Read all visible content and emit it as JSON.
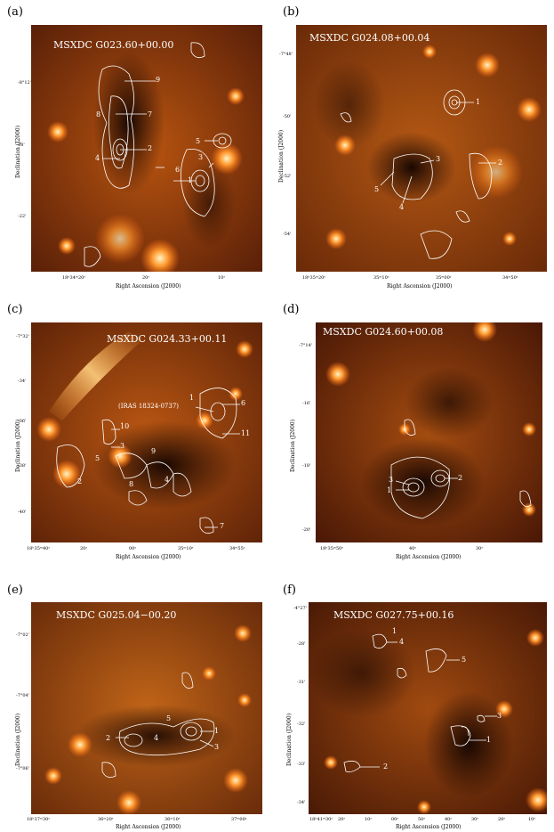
{
  "panels": [
    {
      "id": "a",
      "label": "(a)",
      "title": "MSXDC  G023.60+00.00",
      "ylabel": "Declination (J2000)",
      "xlabel": "Right Ascension (J2000)",
      "xticks": [
        "18ʰ34ᵐ20ˢ",
        "20ˢ",
        "10ˢ"
      ],
      "yticks": [
        "-8°12'",
        "18'",
        "-22'"
      ],
      "cores": [
        "1",
        "2",
        "3",
        "4",
        "5",
        "6",
        "7",
        "8",
        "9"
      ]
    },
    {
      "id": "b",
      "label": "(b)",
      "title": "MSXDC  G024.08+00.04",
      "ylabel": "Declination (J2000)",
      "xlabel": "Right Ascension (J2000)",
      "xticks": [
        "18ʰ35ᵐ20ˢ",
        "35ᵐ10ˢ",
        "35ᵐ00ˢ",
        "34ᵐ50ˢ"
      ],
      "yticks": [
        "-7°48'",
        "-50'",
        "-52'",
        "-54'"
      ],
      "cores": [
        "1",
        "2",
        "3",
        "4",
        "5"
      ]
    },
    {
      "id": "c",
      "label": "(c)",
      "title": "MSXDC  G024.33+00.11",
      "note": "(IRAS 18324-0737)",
      "ylabel": "Declination (J2000)",
      "xlabel": "Right Ascension (J2000)",
      "xticks": [
        "18ʰ35ᵐ40ˢ",
        "20ˢ",
        "00ˢ",
        "35ᵐ10ˢ",
        "34ᵐ55ˢ"
      ],
      "yticks": [
        "-7°32'",
        "-34'",
        "-36'",
        "-38'",
        "-40'"
      ],
      "cores": [
        "1",
        "2",
        "3",
        "4",
        "5",
        "6",
        "7",
        "8",
        "9",
        "10",
        "11"
      ]
    },
    {
      "id": "d",
      "label": "(d)",
      "title": "MSXDC  G024.60+00.08",
      "ylabel": "Declination (J2000)",
      "xlabel": "Right Ascension (J2000)",
      "xticks": [
        "18ʰ35ᵐ50ˢ",
        "40ˢ",
        "30ˢ"
      ],
      "yticks": [
        "-7°14'",
        "-16'",
        "-18'",
        "-20'"
      ],
      "cores": [
        "1",
        "2",
        "3"
      ]
    },
    {
      "id": "e",
      "label": "(e)",
      "title": "MSXDC  G025.04−00.20",
      "ylabel": "Declination (J2000)",
      "xlabel": "Right Ascension (J2000)",
      "xticks": [
        "18ʰ37ᵐ30ˢ",
        "36ᵐ20ˢ",
        "36ᵐ10ˢ",
        "37ᵐ00ˢ"
      ],
      "yticks": [
        "-7°02'",
        "-7°04'",
        "-7°06'"
      ],
      "cores": [
        "1",
        "2",
        "3",
        "4",
        "5"
      ]
    },
    {
      "id": "f",
      "label": "(f)",
      "title": "MSXDC  G027.75+00.16",
      "ylabel": "Declination (J2000)",
      "xlabel": "Right Ascension (J2000)",
      "xticks": [
        "18ʰ41ᵐ30ˢ",
        "20ˢ",
        "10ˢ",
        "00ˢ",
        "50ˢ",
        "40ˢ",
        "30ˢ",
        "20ˢ",
        "10ˢ"
      ],
      "yticks": [
        "-4°27'",
        "-28'",
        "-31'",
        "-32'",
        "-33'",
        "-34'"
      ],
      "cores": [
        "1",
        "2",
        "3",
        "4",
        "5"
      ]
    }
  ]
}
